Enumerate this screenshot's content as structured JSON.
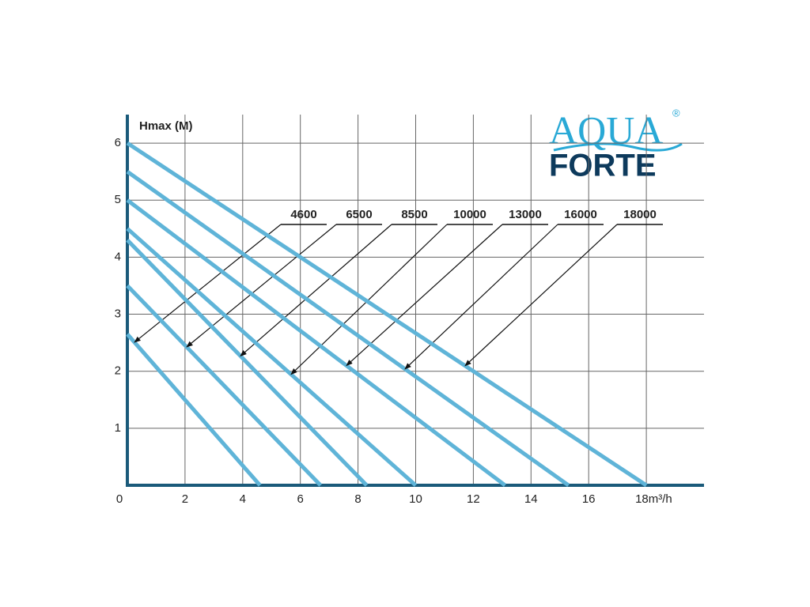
{
  "chart_data": {
    "type": "line",
    "y_axis_label": "Hmax (M)",
    "logo": {
      "line1": "AQUA",
      "line2": "FORTE",
      "mark": "®"
    },
    "xlim": [
      0,
      20
    ],
    "ylim": [
      0,
      6.5
    ],
    "xticks": [
      0,
      2,
      4,
      6,
      8,
      10,
      12,
      14,
      16,
      {
        "value": 18,
        "label": "18m³/h"
      }
    ],
    "yticks": [
      1,
      2,
      3,
      4,
      5,
      6
    ],
    "grid": true,
    "series": [
      {
        "name": "4600",
        "color": "#5fb4d8",
        "x": [
          0,
          4.6
        ],
        "values": [
          2.65,
          0
        ]
      },
      {
        "name": "6500",
        "color": "#5fb4d8",
        "x": [
          0,
          6.7
        ],
        "values": [
          3.5,
          0
        ]
      },
      {
        "name": "8500",
        "color": "#5fb4d8",
        "x": [
          0,
          8.3
        ],
        "values": [
          4.3,
          0
        ]
      },
      {
        "name": "10000",
        "color": "#5fb4d8",
        "x": [
          0,
          10
        ],
        "values": [
          4.5,
          0
        ]
      },
      {
        "name": "13000",
        "color": "#5fb4d8",
        "x": [
          0,
          13.1
        ],
        "values": [
          5,
          0
        ]
      },
      {
        "name": "16000",
        "color": "#5fb4d8",
        "x": [
          0,
          15.3
        ],
        "values": [
          5.5,
          0
        ]
      },
      {
        "name": "18000",
        "color": "#5fb4d8",
        "x": [
          0,
          18
        ],
        "values": [
          6,
          0
        ]
      }
    ]
  }
}
